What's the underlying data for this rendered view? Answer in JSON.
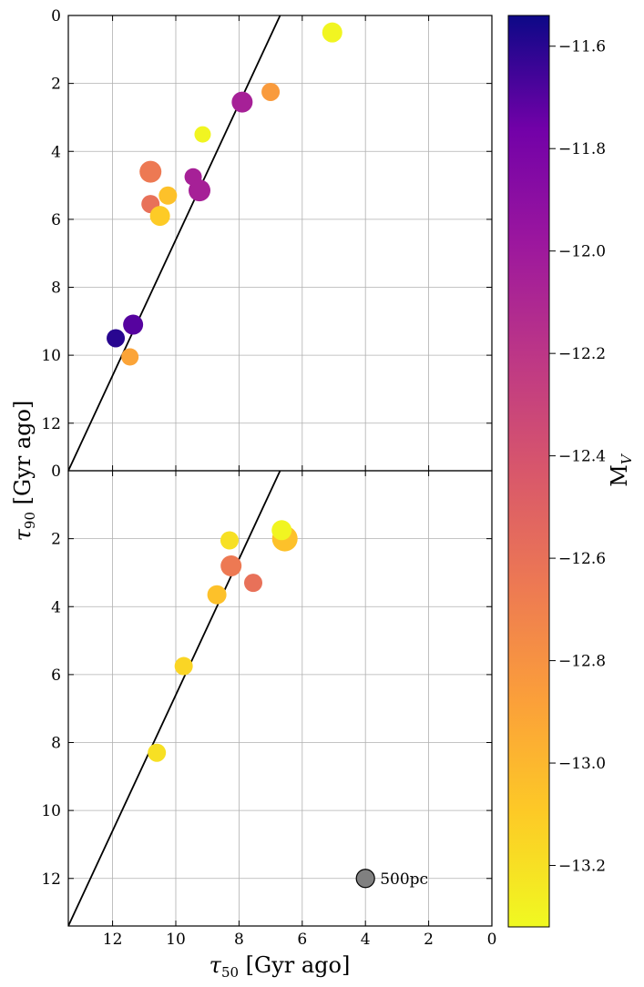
{
  "chart_data": {
    "type": "scatter",
    "xlabel_main": "τ",
    "xlabel_sub": "50",
    "xlabel_rest": " [Gyr ago]",
    "ylabel_main": "τ",
    "ylabel_sub": "90",
    "ylabel_rest": " [Gyr ago]",
    "xlim": [
      13.4,
      0
    ],
    "ylim": [
      0,
      13.4
    ],
    "x_ticks": [
      12,
      10,
      8,
      6,
      4,
      2,
      0
    ],
    "top_panel_y_ticks": [
      0,
      2,
      4,
      6,
      8,
      10,
      12
    ],
    "bottom_panel_y_ticks": [
      2,
      4,
      6,
      8,
      10,
      12
    ],
    "bottom_panel_zero_label": "0",
    "grid": true,
    "reference_line": {
      "description": "tau90 = 2*(tau50 - 6.7)",
      "points": [
        [
          13.4,
          13.4
        ],
        [
          6.7,
          0
        ]
      ]
    },
    "colormap": "plasma",
    "colorbar": {
      "label_main": "M",
      "label_sub": "V",
      "range": [
        -13.32,
        -11.54
      ],
      "ticks": [
        -11.6,
        -11.8,
        -12.0,
        -12.2,
        -12.4,
        -12.6,
        -12.8,
        -13.0,
        -13.2
      ],
      "tick_labels": [
        "−11.6",
        "−11.8",
        "−12.0",
        "−12.2",
        "−12.4",
        "−12.6",
        "−12.8",
        "−13.0",
        "−13.2"
      ]
    },
    "panels": [
      {
        "name": "top",
        "points": [
          {
            "tau50": 5.05,
            "tau90": 0.5,
            "MV": -13.3,
            "size": 11
          },
          {
            "tau50": 7.0,
            "tau90": 2.25,
            "MV": -12.85,
            "size": 10
          },
          {
            "tau50": 7.9,
            "tau90": 2.55,
            "MV": -12.05,
            "size": 11.5
          },
          {
            "tau50": 9.15,
            "tau90": 3.5,
            "MV": -13.3,
            "size": 9
          },
          {
            "tau50": 10.8,
            "tau90": 4.6,
            "MV": -12.65,
            "size": 12
          },
          {
            "tau50": 9.45,
            "tau90": 4.75,
            "MV": -12.05,
            "size": 9.5
          },
          {
            "tau50": 9.25,
            "tau90": 5.15,
            "MV": -12.05,
            "size": 12
          },
          {
            "tau50": 10.25,
            "tau90": 5.3,
            "MV": -13.05,
            "size": 10
          },
          {
            "tau50": 10.8,
            "tau90": 5.55,
            "MV": -12.6,
            "size": 10
          },
          {
            "tau50": 10.5,
            "tau90": 5.9,
            "MV": -13.1,
            "size": 11
          },
          {
            "tau50": 11.35,
            "tau90": 9.1,
            "MV": -11.7,
            "size": 11
          },
          {
            "tau50": 11.9,
            "tau90": 9.5,
            "MV": -11.6,
            "size": 10
          },
          {
            "tau50": 11.45,
            "tau90": 10.05,
            "MV": -12.9,
            "size": 9.5
          }
        ]
      },
      {
        "name": "bottom",
        "points": [
          {
            "tau50": 6.55,
            "tau90": 2.0,
            "MV": -13.05,
            "size": 14
          },
          {
            "tau50": 6.65,
            "tau90": 1.75,
            "MV": -13.3,
            "size": 11
          },
          {
            "tau50": 8.3,
            "tau90": 2.05,
            "MV": -13.2,
            "size": 10
          },
          {
            "tau50": 8.25,
            "tau90": 2.8,
            "MV": -12.65,
            "size": 11.5
          },
          {
            "tau50": 7.55,
            "tau90": 3.3,
            "MV": -12.6,
            "size": 10
          },
          {
            "tau50": 8.7,
            "tau90": 3.65,
            "MV": -13.05,
            "size": 10.5
          },
          {
            "tau50": 9.75,
            "tau90": 5.75,
            "MV": -13.15,
            "size": 10
          },
          {
            "tau50": 10.6,
            "tau90": 8.3,
            "MV": -13.2,
            "size": 10
          }
        ]
      }
    ],
    "size_legend": {
      "label": "500pc",
      "tau50": 4.0,
      "tau90": 12.0,
      "size": 10
    }
  }
}
